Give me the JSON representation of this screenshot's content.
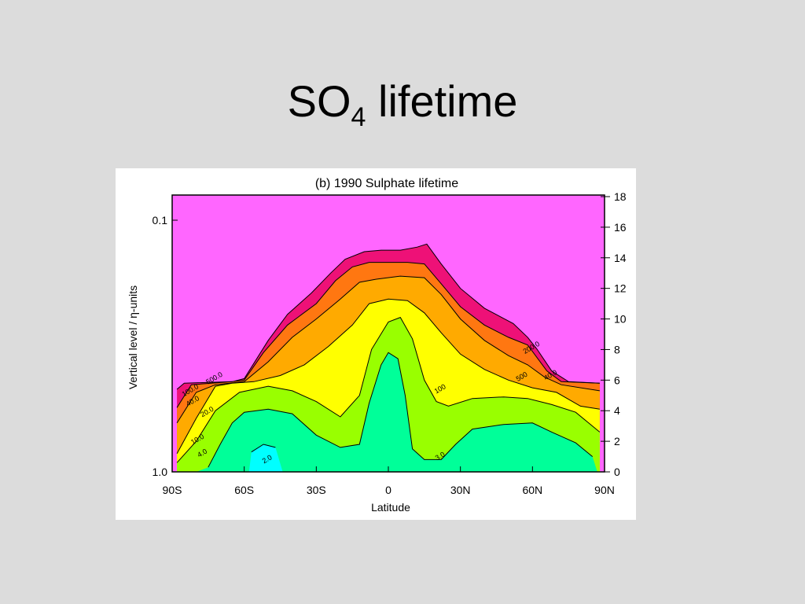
{
  "slide": {
    "title_main": "SO",
    "title_sub": "4",
    "title_rest": " lifetime"
  },
  "chart_data": {
    "type": "heatmap",
    "subtype": "filled-contour",
    "title": "(b)  1990  Sulphate lifetime",
    "xlabel": "Latitude",
    "ylabel": "Vertical level / η-units",
    "xlim": [
      -90,
      90
    ],
    "x_ticks": [
      {
        "value": -90,
        "label": "90S"
      },
      {
        "value": -60,
        "label": "60S"
      },
      {
        "value": -30,
        "label": "30S"
      },
      {
        "value": 0,
        "label": "0"
      },
      {
        "value": 30,
        "label": "30N"
      },
      {
        "value": 60,
        "label": "60N"
      },
      {
        "value": 90,
        "label": "90N"
      }
    ],
    "y_left_scale": "log",
    "y_left_ticks": [
      {
        "value": 0.1,
        "label": "0.1"
      },
      {
        "value": 1.0,
        "label": "1.0"
      }
    ],
    "y_right_ylim": [
      0,
      18
    ],
    "y_right_ticks": [
      0,
      2,
      4,
      6,
      8,
      10,
      12,
      14,
      16,
      18
    ],
    "background_color": "#ff66ff",
    "contour_levels": [
      {
        "color": "#00ffff",
        "profile": [
          [
            -58,
            0
          ],
          [
            -57,
            1.3
          ],
          [
            -52,
            1.8
          ],
          [
            -47,
            1.6
          ],
          [
            -44,
            0
          ]
        ]
      },
      {
        "color": "#00ff99",
        "profile": [
          [
            -80,
            0
          ],
          [
            -75,
            0.3
          ],
          [
            -70,
            1.8
          ],
          [
            -65,
            3.2
          ],
          [
            -60,
            3.9
          ],
          [
            -50,
            4.1
          ],
          [
            -40,
            3.8
          ],
          [
            -30,
            2.4
          ],
          [
            -20,
            1.6
          ],
          [
            -12,
            1.8
          ],
          [
            -8,
            4.5
          ],
          [
            -3,
            7.0
          ],
          [
            0,
            7.8
          ],
          [
            4,
            7.4
          ],
          [
            7,
            5.0
          ],
          [
            10,
            1.5
          ],
          [
            15,
            0.8
          ],
          [
            22,
            0.8
          ],
          [
            28,
            1.8
          ],
          [
            35,
            2.8
          ],
          [
            48,
            3.1
          ],
          [
            60,
            3.2
          ],
          [
            68,
            2.6
          ],
          [
            78,
            1.9
          ],
          [
            85,
            1.0
          ],
          [
            87,
            0
          ]
        ]
      },
      {
        "color": "#99ff00",
        "profile": [
          [
            -88,
            0
          ],
          [
            -88,
            0.6
          ],
          [
            -80,
            2.0
          ],
          [
            -72,
            4.0
          ],
          [
            -62,
            5.2
          ],
          [
            -50,
            5.6
          ],
          [
            -40,
            5.3
          ],
          [
            -30,
            4.6
          ],
          [
            -20,
            3.6
          ],
          [
            -12,
            5.0
          ],
          [
            -7,
            8.0
          ],
          [
            0,
            9.8
          ],
          [
            5,
            10.1
          ],
          [
            10,
            8.7
          ],
          [
            15,
            6.0
          ],
          [
            20,
            4.6
          ],
          [
            25,
            4.3
          ],
          [
            35,
            4.8
          ],
          [
            48,
            4.9
          ],
          [
            58,
            4.8
          ],
          [
            68,
            4.4
          ],
          [
            78,
            3.9
          ],
          [
            88,
            2.6
          ],
          [
            88,
            0
          ]
        ]
      },
      {
        "color": "#ffff00",
        "profile": [
          [
            -88,
            0
          ],
          [
            -88,
            1.2
          ],
          [
            -80,
            3.5
          ],
          [
            -72,
            5.6
          ],
          [
            -65,
            5.8
          ],
          [
            -56,
            5.9
          ],
          [
            -45,
            6.3
          ],
          [
            -35,
            7.0
          ],
          [
            -25,
            8.2
          ],
          [
            -15,
            9.6
          ],
          [
            -8,
            11.0
          ],
          [
            0,
            11.3
          ],
          [
            8,
            11.2
          ],
          [
            15,
            10.4
          ],
          [
            22,
            9.1
          ],
          [
            30,
            7.7
          ],
          [
            40,
            6.7
          ],
          [
            50,
            6.0
          ],
          [
            60,
            5.5
          ],
          [
            70,
            5.2
          ],
          [
            80,
            4.3
          ],
          [
            88,
            4.1
          ],
          [
            88,
            0
          ]
        ]
      },
      {
        "color": "#ffaa00",
        "profile": [
          [
            -88,
            0
          ],
          [
            -88,
            3.2
          ],
          [
            -80,
            5.2
          ],
          [
            -72,
            5.7
          ],
          [
            -60,
            5.9
          ],
          [
            -50,
            7.2
          ],
          [
            -40,
            8.8
          ],
          [
            -30,
            10.0
          ],
          [
            -20,
            11.3
          ],
          [
            -12,
            12.4
          ],
          [
            -5,
            12.6
          ],
          [
            5,
            12.8
          ],
          [
            15,
            12.7
          ],
          [
            22,
            11.6
          ],
          [
            30,
            10.0
          ],
          [
            40,
            8.6
          ],
          [
            50,
            7.6
          ],
          [
            58,
            7.0
          ],
          [
            65,
            6.2
          ],
          [
            72,
            5.7
          ],
          [
            88,
            5.3
          ],
          [
            88,
            0
          ]
        ]
      },
      {
        "color": "#ff7711",
        "profile": [
          [
            -88,
            0
          ],
          [
            -88,
            4.2
          ],
          [
            -82,
            5.7
          ],
          [
            -65,
            5.9
          ],
          [
            -60,
            6.0
          ],
          [
            -52,
            7.8
          ],
          [
            -42,
            9.6
          ],
          [
            -30,
            11.0
          ],
          [
            -22,
            12.5
          ],
          [
            -15,
            13.4
          ],
          [
            -8,
            13.7
          ],
          [
            0,
            13.7
          ],
          [
            8,
            13.7
          ],
          [
            15,
            13.6
          ],
          [
            22,
            12.3
          ],
          [
            30,
            10.8
          ],
          [
            40,
            9.6
          ],
          [
            50,
            8.8
          ],
          [
            58,
            8.3
          ],
          [
            66,
            6.6
          ],
          [
            72,
            5.9
          ],
          [
            88,
            5.8
          ],
          [
            88,
            0
          ]
        ]
      },
      {
        "color": "#ee1177",
        "profile": [
          [
            -88,
            0
          ],
          [
            -88,
            5.4
          ],
          [
            -85,
            5.8
          ],
          [
            -65,
            5.9
          ],
          [
            -60,
            6.1
          ],
          [
            -50,
            8.6
          ],
          [
            -42,
            10.3
          ],
          [
            -32,
            11.7
          ],
          [
            -24,
            13.0
          ],
          [
            -18,
            13.9
          ],
          [
            -10,
            14.4
          ],
          [
            -3,
            14.5
          ],
          [
            5,
            14.5
          ],
          [
            12,
            14.7
          ],
          [
            16,
            14.9
          ],
          [
            22,
            13.6
          ],
          [
            30,
            12.0
          ],
          [
            40,
            10.7
          ],
          [
            52,
            9.7
          ],
          [
            58,
            8.8
          ],
          [
            62,
            8.0
          ],
          [
            68,
            6.6
          ],
          [
            75,
            5.9
          ],
          [
            88,
            5.8
          ],
          [
            88,
            0
          ]
        ]
      }
    ],
    "contour_labels": [
      {
        "text": "2.0",
        "x": -50,
        "y": 0.7
      },
      {
        "text": "3.0",
        "x": 22,
        "y": 0.9
      },
      {
        "text": "4.0",
        "x": -77,
        "y": 1.1
      },
      {
        "text": "10.0",
        "x": -79,
        "y": 2.0
      },
      {
        "text": "20.0",
        "x": -75,
        "y": 3.8
      },
      {
        "text": "40.0",
        "x": -81,
        "y": 4.5
      },
      {
        "text": "100.0",
        "x": -82,
        "y": 5.2
      },
      {
        "text": "500.0",
        "x": -72,
        "y": 6.0
      },
      {
        "text": "100",
        "x": 22,
        "y": 5.3
      },
      {
        "text": "500",
        "x": 56,
        "y": 6.1
      },
      {
        "text": "200.0",
        "x": 60,
        "y": 8.0
      },
      {
        "text": "40.0",
        "x": 68,
        "y": 6.2
      }
    ]
  }
}
